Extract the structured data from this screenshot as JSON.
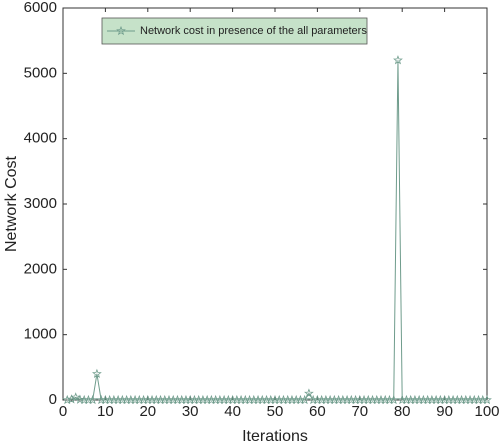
{
  "chart_data": {
    "type": "line",
    "x_label": "Iterations",
    "y_label": "Network Cost",
    "x": [
      1,
      2,
      3,
      4,
      5,
      6,
      7,
      8,
      9,
      10,
      11,
      12,
      13,
      14,
      15,
      16,
      17,
      18,
      19,
      20,
      21,
      22,
      23,
      24,
      25,
      26,
      27,
      28,
      29,
      30,
      31,
      32,
      33,
      34,
      35,
      36,
      37,
      38,
      39,
      40,
      41,
      42,
      43,
      44,
      45,
      46,
      47,
      48,
      49,
      50,
      51,
      52,
      53,
      54,
      55,
      56,
      57,
      58,
      59,
      60,
      61,
      62,
      63,
      64,
      65,
      66,
      67,
      68,
      69,
      70,
      71,
      72,
      73,
      74,
      75,
      76,
      77,
      78,
      79,
      80,
      81,
      82,
      83,
      84,
      85,
      86,
      87,
      88,
      89,
      90,
      91,
      92,
      93,
      94,
      95,
      96,
      97,
      98,
      99,
      100
    ],
    "series": [
      {
        "name": "Network cost in presence of the all parameters",
        "color": "#6f9c8c",
        "values": [
          0,
          10,
          40,
          5,
          0,
          0,
          0,
          400,
          0,
          0,
          0,
          0,
          0,
          0,
          0,
          0,
          0,
          0,
          0,
          0,
          0,
          0,
          0,
          0,
          0,
          0,
          0,
          0,
          0,
          0,
          0,
          0,
          0,
          0,
          0,
          0,
          0,
          0,
          0,
          0,
          0,
          0,
          0,
          0,
          0,
          0,
          0,
          0,
          0,
          0,
          0,
          0,
          0,
          0,
          0,
          0,
          0,
          100,
          0,
          0,
          0,
          0,
          0,
          0,
          0,
          0,
          0,
          0,
          0,
          0,
          0,
          0,
          0,
          0,
          0,
          0,
          0,
          0,
          5200,
          0,
          0,
          0,
          0,
          0,
          0,
          0,
          0,
          0,
          0,
          0,
          0,
          0,
          0,
          0,
          0,
          0,
          0,
          0,
          0,
          0
        ]
      }
    ],
    "xlim": [
      0,
      100
    ],
    "xticks": [
      0,
      10,
      20,
      30,
      40,
      50,
      60,
      70,
      80,
      90,
      100
    ],
    "ylim": [
      0,
      6000
    ],
    "yticks": [
      0,
      1000,
      2000,
      3000,
      4000,
      5000,
      6000
    ],
    "legend": "upper left",
    "legend_fill": "#c6e2c9"
  }
}
